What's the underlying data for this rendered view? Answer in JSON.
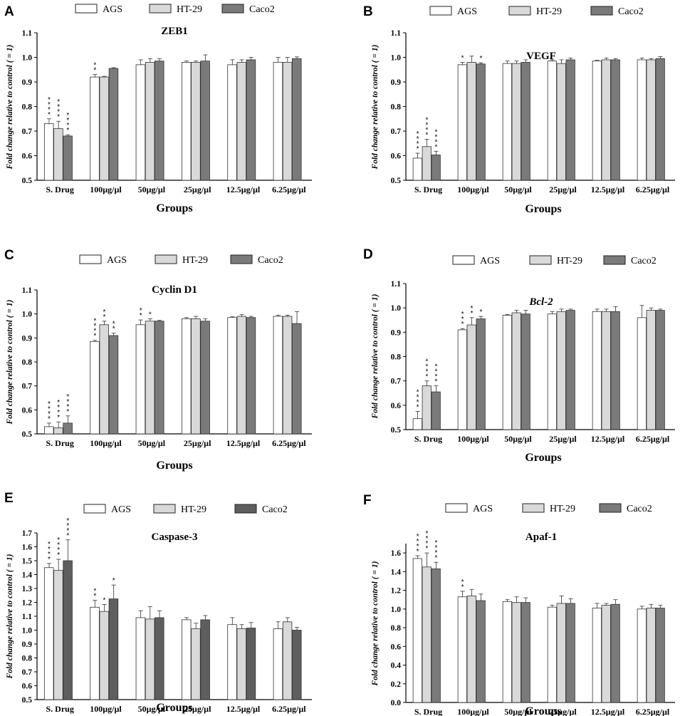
{
  "figure": {
    "legend_labels": [
      "AGS",
      "HT-29",
      "Caco2"
    ],
    "x_axis_label": "Groups",
    "y_axis_label": "Fold change relative to control ( = 1)"
  },
  "chart_data": [
    {
      "panel": "A",
      "type": "bar",
      "title": "ZEB1",
      "title_italic": false,
      "xlabel": "Groups",
      "ylabel": "Fold change relative to control ( = 1)",
      "ylim": [
        0.5,
        1.1
      ],
      "yticks": [
        "0.5",
        "0.6",
        "0.7",
        "0.8",
        "0.9",
        "1.0",
        "1.1"
      ],
      "categories": [
        "S. Drug",
        "100µg/µl",
        "50µg/µl",
        "25µg/µl",
        "12.5µg/µl",
        "6.25µg/µl"
      ],
      "series": [
        {
          "name": "AGS",
          "values": [
            0.73,
            0.92,
            0.97,
            0.98,
            0.97,
            0.98
          ],
          "errors": [
            0.02,
            0.01,
            0.02,
            0.005,
            0.02,
            0.02
          ],
          "stars": [
            "****",
            "**",
            "",
            "",
            "",
            ""
          ]
        },
        {
          "name": "HT-29",
          "values": [
            0.71,
            0.92,
            0.98,
            0.98,
            0.98,
            0.98
          ],
          "errors": [
            0.03,
            0.003,
            0.015,
            0.005,
            0.01,
            0.02
          ],
          "stars": [
            "****",
            "",
            "",
            "",
            "",
            ""
          ]
        },
        {
          "name": "Caco2",
          "values": [
            0.68,
            0.955,
            0.985,
            0.985,
            0.99,
            0.995
          ],
          "errors": [
            0.005,
            0.003,
            0.01,
            0.025,
            0.01,
            0.007
          ],
          "stars": [
            "****",
            "",
            "",
            "",
            "",
            ""
          ]
        }
      ],
      "colors": [
        "#ffffff",
        "#d9d9d9",
        "#7a7a7a"
      ]
    },
    {
      "panel": "B",
      "type": "bar",
      "title": "VEGF",
      "title_italic": false,
      "xlabel": "Groups",
      "ylabel": "Fold change relative to control ( = 1)",
      "ylim": [
        0.5,
        1.1
      ],
      "yticks": [
        "0.5",
        "0.6",
        "0.7",
        "0.8",
        "0.9",
        "1.0",
        "1.1"
      ],
      "categories": [
        "S. Drug",
        "100µg/µl",
        "50µg/µl",
        "25µg/µl",
        "12.5µg/µl",
        "6.25µg/µl"
      ],
      "series": [
        {
          "name": "AGS",
          "values": [
            0.59,
            0.97,
            0.975,
            0.985,
            0.985,
            0.99
          ],
          "errors": [
            0.02,
            0.01,
            0.01,
            0.005,
            0.003,
            0.007
          ],
          "stars": [
            "****",
            "*",
            "",
            "",
            "",
            ""
          ]
        },
        {
          "name": "HT-29",
          "values": [
            0.637,
            0.98,
            0.975,
            0.975,
            0.99,
            0.99
          ],
          "errors": [
            0.03,
            0.025,
            0.01,
            0.015,
            0.007,
            0.005
          ],
          "stars": [
            "****",
            "",
            "",
            "",
            "",
            ""
          ]
        },
        {
          "name": "Caco2",
          "values": [
            0.603,
            0.973,
            0.98,
            0.99,
            0.99,
            0.995
          ],
          "errors": [
            0.015,
            0.005,
            0.01,
            0.007,
            0.005,
            0.008
          ],
          "stars": [
            "****",
            "*",
            "",
            "",
            "",
            ""
          ]
        }
      ],
      "colors": [
        "#ffffff",
        "#d9d9d9",
        "#7a7a7a"
      ]
    },
    {
      "panel": "C",
      "type": "bar",
      "title": "Cyclin D1",
      "title_italic": false,
      "xlabel": "Groups",
      "ylabel": "Fold change relative to control ( = 1)",
      "ylim": [
        0.5,
        1.1
      ],
      "yticks": [
        "0.5",
        "0.6",
        "0.7",
        "0.8",
        "0.9",
        "1.0",
        "1.1"
      ],
      "categories": [
        "S. Drug",
        "100µg/µl",
        "50µg/µl",
        "25µg/µl",
        "12.5µg/µl",
        "6.25µg/µl"
      ],
      "series": [
        {
          "name": "AGS",
          "values": [
            0.53,
            0.885,
            0.955,
            0.98,
            0.985,
            0.99
          ],
          "errors": [
            0.015,
            0.005,
            0.02,
            0.005,
            0.003,
            0.005
          ],
          "stars": [
            "****",
            "****",
            "**",
            "",
            "",
            ""
          ]
        },
        {
          "name": "HT-29",
          "values": [
            0.525,
            0.955,
            0.97,
            0.98,
            0.99,
            0.99
          ],
          "errors": [
            0.025,
            0.015,
            0.01,
            0.01,
            0.007,
            0.005
          ],
          "stars": [
            "****",
            "**",
            "*",
            "",
            "",
            ""
          ]
        },
        {
          "name": "Caco2",
          "values": [
            0.545,
            0.91,
            0.97,
            0.97,
            0.985,
            0.96
          ],
          "errors": [
            0.03,
            0.01,
            0.003,
            0.01,
            0.005,
            0.05
          ],
          "stars": [
            "****",
            "**",
            "",
            "",
            "",
            ""
          ]
        }
      ],
      "colors": [
        "#ffffff",
        "#d9d9d9",
        "#7a7a7a"
      ]
    },
    {
      "panel": "D",
      "type": "bar",
      "title": "Bcl-2",
      "title_italic": true,
      "xlabel": "Groups",
      "ylabel": "Fold change relative to control ( = 1)",
      "ylim": [
        0.5,
        1.1
      ],
      "yticks": [
        "0.5",
        "0.6",
        "0.7",
        "0.8",
        "0.9",
        "1.0",
        "1.1"
      ],
      "categories": [
        "S. Drug",
        "100µg/µl",
        "50µg/µl",
        "25µg/µl",
        "12.5µg/µl",
        "6.25µg/µl"
      ],
      "series": [
        {
          "name": "AGS",
          "values": [
            0.545,
            0.91,
            0.97,
            0.975,
            0.985,
            0.96
          ],
          "errors": [
            0.03,
            0.005,
            0.003,
            0.01,
            0.01,
            0.05
          ],
          "stars": [
            "****",
            "***",
            "",
            "",
            "",
            ""
          ]
        },
        {
          "name": "HT-29",
          "values": [
            0.68,
            0.93,
            0.98,
            0.985,
            0.985,
            0.99
          ],
          "errors": [
            0.02,
            0.03,
            0.01,
            0.01,
            0.01,
            0.01
          ],
          "stars": [
            "****",
            "**",
            "",
            "",
            "",
            ""
          ]
        },
        {
          "name": "Caco2",
          "values": [
            0.655,
            0.955,
            0.975,
            0.99,
            0.985,
            0.99
          ],
          "errors": [
            0.025,
            0.01,
            0.015,
            0.005,
            0.02,
            0.005
          ],
          "stars": [
            "****",
            "*",
            "",
            "",
            "",
            ""
          ]
        }
      ],
      "colors": [
        "#ffffff",
        "#d9d9d9",
        "#7a7a7a"
      ]
    },
    {
      "panel": "E",
      "type": "bar",
      "title": "Caspase-3",
      "title_italic": false,
      "xlabel": "Groups",
      "ylabel": "Fold change relative to control ( = 1)",
      "ylim": [
        0.5,
        1.7
      ],
      "yticks": [
        "0.5",
        "0.6",
        "0.7",
        "0.8",
        "0.9",
        "1.0",
        "1.1",
        "1.2",
        "1.3",
        "1.4",
        "1.5",
        "1.6",
        "1.7"
      ],
      "categories": [
        "S. Drug",
        "100µg/µl",
        "50µg/µl",
        "25µg/µl",
        "12.5µg/µl",
        "6.25µg/µl"
      ],
      "series": [
        {
          "name": "AGS",
          "values": [
            1.45,
            1.165,
            1.09,
            1.075,
            1.04,
            1.01
          ],
          "errors": [
            0.03,
            0.05,
            0.05,
            0.015,
            0.05,
            0.05
          ],
          "stars": [
            "****",
            "**",
            "",
            "",
            "",
            ""
          ]
        },
        {
          "name": "HT-29",
          "values": [
            1.43,
            1.135,
            1.08,
            1.01,
            1.01,
            1.06
          ],
          "errors": [
            0.08,
            0.05,
            0.09,
            0.04,
            0.03,
            0.03
          ],
          "stars": [
            "****",
            "*",
            "",
            "",
            "",
            ""
          ]
        },
        {
          "name": "Caco2",
          "values": [
            1.5,
            1.225,
            1.09,
            1.075,
            1.015,
            1.0
          ],
          "errors": [
            0.15,
            0.1,
            0.05,
            0.03,
            0.04,
            0.02
          ],
          "stars": [
            "****",
            "*",
            "",
            "",
            "",
            ""
          ]
        }
      ],
      "colors": [
        "#ffffff",
        "#d9d9d9",
        "#5e5e5e"
      ]
    },
    {
      "panel": "F",
      "type": "bar",
      "title": "Apaf-1",
      "title_italic": false,
      "xlabel": "Groups",
      "ylabel": "Fold change relative to control ( = 1)",
      "ylim": [
        0.0,
        1.7
      ],
      "yticks": [
        "0.0",
        "0.2",
        "0.4",
        "0.6",
        "0.8",
        "1.0",
        "1.2",
        "1.4",
        "1.6"
      ],
      "categories": [
        "S. Drug",
        "100µg/µl",
        "50µg/µl",
        "25µg/µl",
        "12.5µg/µl",
        "6.25µg/µl"
      ],
      "series": [
        {
          "name": "AGS",
          "values": [
            1.54,
            1.13,
            1.08,
            1.02,
            1.01,
            1.0
          ],
          "errors": [
            0.03,
            0.06,
            0.02,
            0.02,
            0.05,
            0.03
          ],
          "stars": [
            "****",
            "**",
            "",
            "",
            "",
            ""
          ]
        },
        {
          "name": "HT-29",
          "values": [
            1.45,
            1.14,
            1.07,
            1.06,
            1.04,
            1.01
          ],
          "errors": [
            0.15,
            0.07,
            0.06,
            0.08,
            0.02,
            0.04
          ],
          "stars": [
            "****",
            "",
            "",
            "",
            "",
            ""
          ]
        },
        {
          "name": "Caco2",
          "values": [
            1.43,
            1.09,
            1.07,
            1.06,
            1.05,
            1.01
          ],
          "errors": [
            0.07,
            0.07,
            0.05,
            0.05,
            0.05,
            0.03
          ],
          "stars": [
            "****",
            "",
            "",
            "",
            "",
            ""
          ]
        }
      ],
      "colors": [
        "#ffffff",
        "#d9d9d9",
        "#7a7a7a"
      ]
    }
  ]
}
